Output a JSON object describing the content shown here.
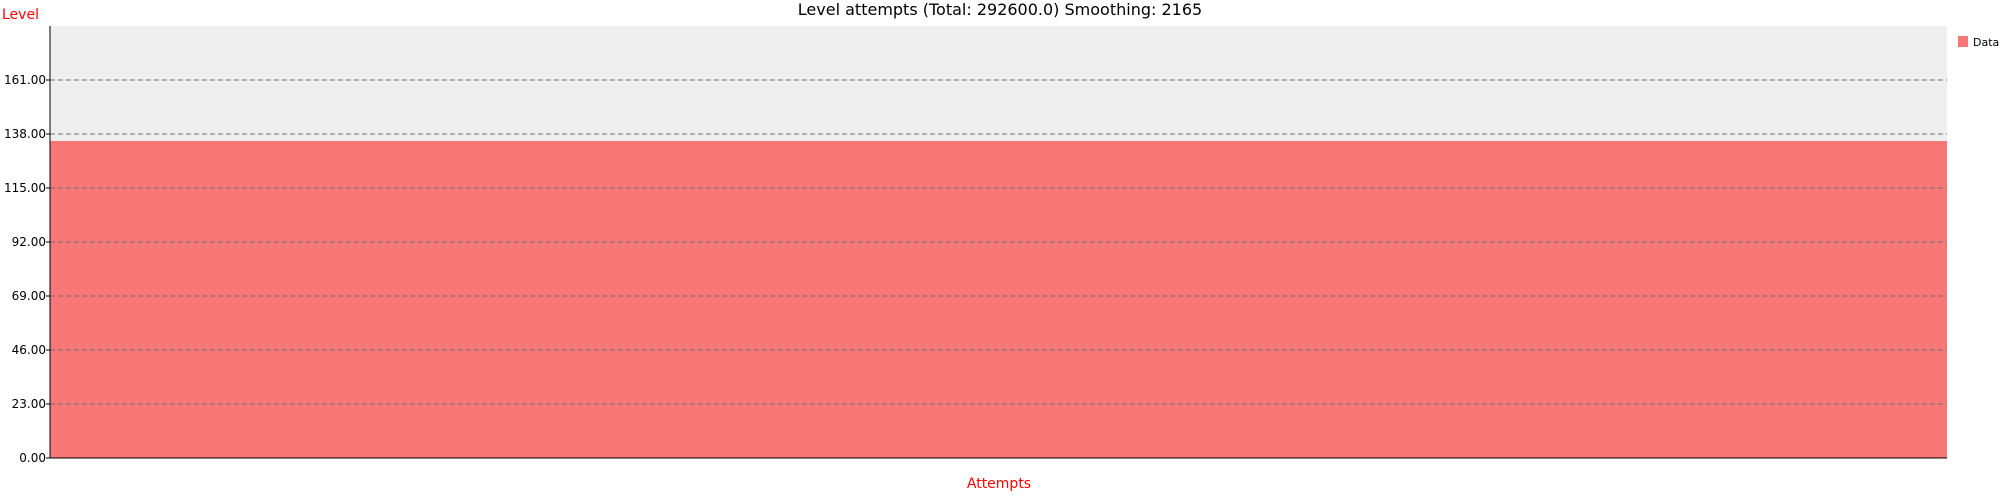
{
  "chart_data": {
    "type": "area",
    "title": "Level attempts (Total: 292600.0) Smoothing: 2165",
    "xlabel": "Attempts",
    "ylabel": "Level",
    "ylim": [
      0,
      184
    ],
    "yticks": [
      0,
      23,
      46,
      69,
      92,
      115,
      138,
      161
    ],
    "ytick_labels": [
      "0.00",
      "23.00",
      "46.00",
      "69.00",
      "92.00",
      "115.00",
      "138.00",
      "161.00"
    ],
    "grid": true,
    "legend_position": "top-right",
    "series": [
      {
        "name": "Data",
        "color": "#f77876",
        "x": [
          0,
          1
        ],
        "values": [
          135,
          135
        ]
      }
    ],
    "colors": {
      "plot_background": "#efefef",
      "axis_label": "#ff0000",
      "grid": "#707070"
    }
  }
}
